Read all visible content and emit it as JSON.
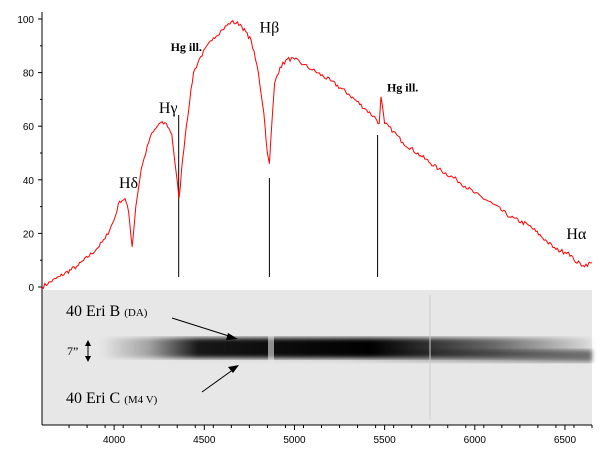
{
  "chart_data": {
    "type": "line",
    "xlim": [
      3600,
      6650
    ],
    "ylim": [
      0,
      100
    ],
    "x_ticks": [
      "4000",
      "4500",
      "5000",
      "5500",
      "6000",
      "6500"
    ],
    "y_ticks": [
      "0",
      "20",
      "40",
      "60",
      "80",
      "100"
    ],
    "grid": false,
    "series_color": "#ff0000",
    "series": [
      {
        "x": [
          3600,
          3700,
          3800,
          3900,
          3950,
          4000,
          4030,
          4060,
          4080,
          4100,
          4120,
          4150,
          4200,
          4250,
          4290,
          4320,
          4340,
          4360,
          4380,
          4400,
          4420,
          4440,
          4480,
          4550,
          4600,
          4650,
          4700,
          4760,
          4800,
          4830,
          4850,
          4861,
          4870,
          4890,
          4920,
          4960,
          5000,
          5050,
          5100,
          5200,
          5300,
          5400,
          5450,
          5470,
          5480,
          5500,
          5550,
          5600,
          5700,
          5800,
          5900,
          6000,
          6100,
          6200,
          6300,
          6400,
          6450,
          6500,
          6520,
          6550,
          6600,
          6650
        ],
        "y": [
          0,
          4,
          8,
          14,
          18,
          25,
          32,
          33,
          28,
          15,
          30,
          44,
          56,
          61,
          61,
          57,
          45,
          33,
          48,
          60,
          70,
          80,
          86,
          93,
          96,
          99,
          98,
          92,
          80,
          65,
          50,
          46,
          56,
          76,
          82,
          85,
          85,
          83,
          81,
          77,
          72,
          66,
          63,
          61,
          71,
          61,
          58,
          54,
          49,
          44,
          40,
          35,
          31,
          26,
          23,
          17,
          14,
          13,
          13,
          10,
          8,
          9
        ]
      }
    ],
    "annotations": [
      {
        "label": "Hδ",
        "x": 4080,
        "y": 37
      },
      {
        "label": "Hγ",
        "x": 4300,
        "y": 65
      },
      {
        "label": "Hg ill.",
        "x": 4400,
        "y": 88
      },
      {
        "label": "Hβ",
        "x": 4861,
        "y": 95
      },
      {
        "label": "Hg ill.",
        "x": 5600,
        "y": 73
      },
      {
        "label": "Hα",
        "x": 6563,
        "y": 18
      }
    ],
    "marker_lines": [
      4358,
      4861,
      5461
    ]
  },
  "spectrum_image": {
    "label_b_name": "40 Eri B",
    "label_b_type": "(DA)",
    "label_c_name": "40 Eri C",
    "label_c_type": "(M4 V)",
    "scale_label": "7”"
  }
}
